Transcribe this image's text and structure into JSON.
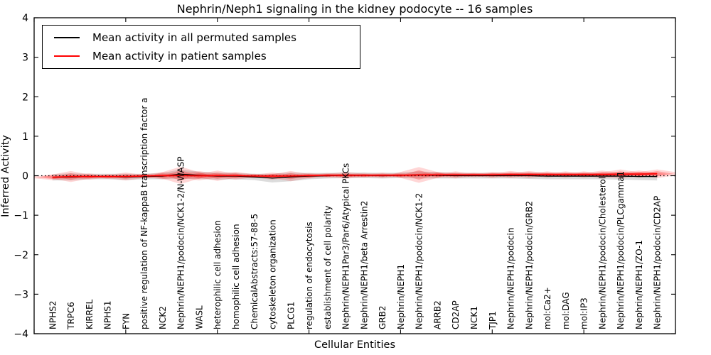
{
  "chart_data": {
    "type": "line",
    "title": "Nephrin/Neph1 signaling in the kidney podocyte -- 16 samples",
    "xlabel": "Cellular Entities",
    "ylabel": "Inferred Activity",
    "ylim": [
      -4,
      4
    ],
    "ytick_values": [
      4,
      3,
      2,
      1,
      0,
      -1,
      -2,
      -3,
      -4
    ],
    "ytick_labels": [
      "4",
      "3",
      "2",
      "1",
      "0",
      "−1",
      "−2",
      "−3",
      "−4"
    ],
    "xtick_positions": [
      0,
      5,
      10,
      15,
      20,
      25,
      30,
      35
    ],
    "grid": false,
    "legend_position": "upper-left",
    "zero_line": {
      "y": 0,
      "style": "dotted",
      "color": "#000000"
    },
    "categories": [
      "NPHS2",
      "TRPC6",
      "KIRREL",
      "NPHS1",
      "FYN",
      "positive regulation of NF-kappaB transcription factor a",
      "NCK2",
      "Nephrin/NEPH1/podocin/NCK1-2/N-WASP",
      "WASL",
      "heterophilic cell adhesion",
      "homophilic cell adhesion",
      "ChemicalAbstracts:57-88-5",
      "cytoskeleton organization",
      "PLCG1",
      "regulation of endocytosis",
      "establishment of cell polarity",
      "Nephrin/NEPH1Par3/Par6/Atypical PKCs",
      "Nephrin/NEPH1/beta Arrestin2",
      "GRB2",
      "Nephrin/NEPH1",
      "Nephrin/NEPH1/podocin/NCK1-2",
      "ARRB2",
      "CD2AP",
      "NCK1",
      "TJP1",
      "Nephrin/NEPH1/podocin",
      "Nephrin/NEPH1/podocin/GRB2",
      "mol:Ca2+",
      "mol:DAG",
      "mol:IP3",
      "Nephrin/NEPH1/podocin/Cholesterol",
      "Nephrin/NEPH1/podocin/PLCgamma1",
      "Nephrin/NEPH1/ZO-1",
      "Nephrin/NEPH1/podocin/CD2AP"
    ],
    "series": [
      {
        "name": "Mean activity in all permuted samples",
        "color": "#000000",
        "values": [
          -0.04,
          -0.03,
          -0.02,
          -0.02,
          -0.03,
          -0.02,
          -0.01,
          0.04,
          0.01,
          -0.01,
          -0.01,
          -0.03,
          -0.06,
          -0.03,
          -0.01,
          0.0,
          0.01,
          0.01,
          0.0,
          0.01,
          0.02,
          0.01,
          0.0,
          0.0,
          0.0,
          0.0,
          0.0,
          -0.01,
          -0.01,
          -0.01,
          -0.01,
          -0.01,
          -0.02,
          -0.02
        ]
      },
      {
        "name": "Mean activity in patient samples",
        "color": "#ff0000",
        "values": [
          -0.04,
          -0.02,
          -0.02,
          -0.02,
          -0.02,
          -0.01,
          0.0,
          0.01,
          0.0,
          0.0,
          0.0,
          -0.01,
          -0.01,
          -0.01,
          0.0,
          0.01,
          0.01,
          0.01,
          0.01,
          0.01,
          0.02,
          0.02,
          0.02,
          0.02,
          0.02,
          0.03,
          0.03,
          0.03,
          0.03,
          0.03,
          0.03,
          0.04,
          0.04,
          0.05
        ]
      }
    ],
    "bands": [
      {
        "name": "permuted samples spread",
        "color": "#bfbfbf",
        "opacity": 0.55,
        "series_index": 0,
        "half_widths": [
          0.08,
          0.09,
          0.07,
          0.07,
          0.08,
          0.07,
          0.08,
          0.12,
          0.09,
          0.09,
          0.08,
          0.08,
          0.11,
          0.11,
          0.08,
          0.07,
          0.07,
          0.07,
          0.07,
          0.07,
          0.09,
          0.08,
          0.07,
          0.07,
          0.07,
          0.07,
          0.08,
          0.08,
          0.08,
          0.08,
          0.08,
          0.09,
          0.09,
          0.1
        ]
      },
      {
        "name": "patient samples spread",
        "color": "#ff0000",
        "opacity": 0.16,
        "series_index": 1,
        "half_widths": [
          0.07,
          0.14,
          0.08,
          0.06,
          0.1,
          0.06,
          0.09,
          0.22,
          0.12,
          0.13,
          0.1,
          0.06,
          0.09,
          0.13,
          0.07,
          0.06,
          0.09,
          0.06,
          0.07,
          0.06,
          0.2,
          0.08,
          0.09,
          0.06,
          0.08,
          0.09,
          0.09,
          0.08,
          0.08,
          0.08,
          0.1,
          0.12,
          0.09,
          0.11
        ]
      }
    ],
    "legend": {
      "entries": [
        {
          "label": "Mean activity in all permuted samples",
          "color": "#000000"
        },
        {
          "label": "Mean activity in patient samples",
          "color": "#ff0000"
        }
      ]
    }
  }
}
